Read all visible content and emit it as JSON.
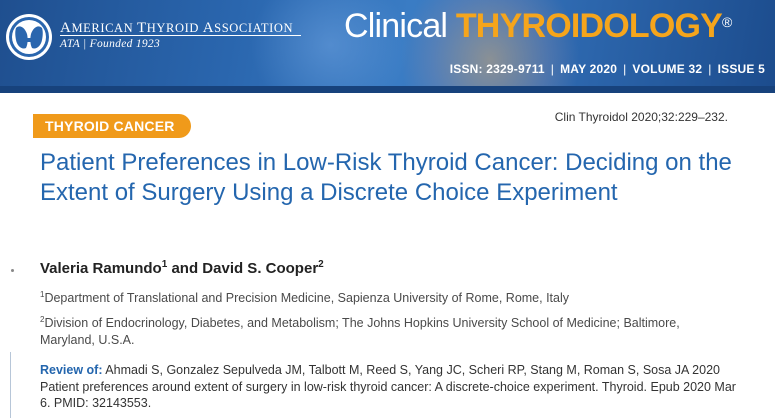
{
  "header": {
    "association": {
      "name_lead": "A",
      "name_rest": "MERICAN ",
      "name_lead2": "T",
      "name_rest2": "HYROID ",
      "name_lead3": "A",
      "name_rest3": "SSOCIATION",
      "subtitle": "ATA | Founded 1923",
      "logo_icon": "thyroid-butterfly-icon"
    },
    "journal_part1": "Clinical ",
    "journal_part2": "THYROIDOLOGY",
    "journal_mark": "®",
    "issn": "ISSN: 2329-9711",
    "date": "MAY 2020",
    "volume": "VOLUME 32",
    "issue": "ISSUE 5",
    "separator": "|"
  },
  "article": {
    "section": "THYROID CANCER",
    "citation": "Clin Thyroidol 2020;32:229–232.",
    "title": "Patient Preferences in Low-Risk Thyroid Cancer: Deciding on the Extent of Surgery Using a Discrete Choice Experiment",
    "authors": [
      {
        "name": "Valeria Ramundo",
        "sup": "1"
      },
      {
        "joiner": " and "
      },
      {
        "name": "David S. Cooper",
        "sup": "2"
      }
    ],
    "affiliations": [
      {
        "sup": "1",
        "text": "Department of Translational and Precision Medicine, Sapienza University of Rome, Rome, Italy"
      },
      {
        "sup": "2",
        "text": "Division of Endocrinology, Diabetes, and Metabolism; The Johns Hopkins University School of Medicine; Baltimore, Maryland, U.S.A."
      }
    ],
    "review_label": "Review of:",
    "review_text": " Ahmadi S, Gonzalez Sepulveda JM, Talbott M, Reed S, Yang JC, Scheri RP, Stang M, Roman S, Sosa JA 2020 Patient preferences around extent of surgery in low-risk thyroid cancer: A discrete-choice experiment. Thyroid. Epub 2020 Mar 6. PMID: 32143553."
  },
  "colors": {
    "banner_blue": "#2a66ae",
    "accent_orange": "#f09a1a",
    "title_blue": "#2466ae"
  }
}
